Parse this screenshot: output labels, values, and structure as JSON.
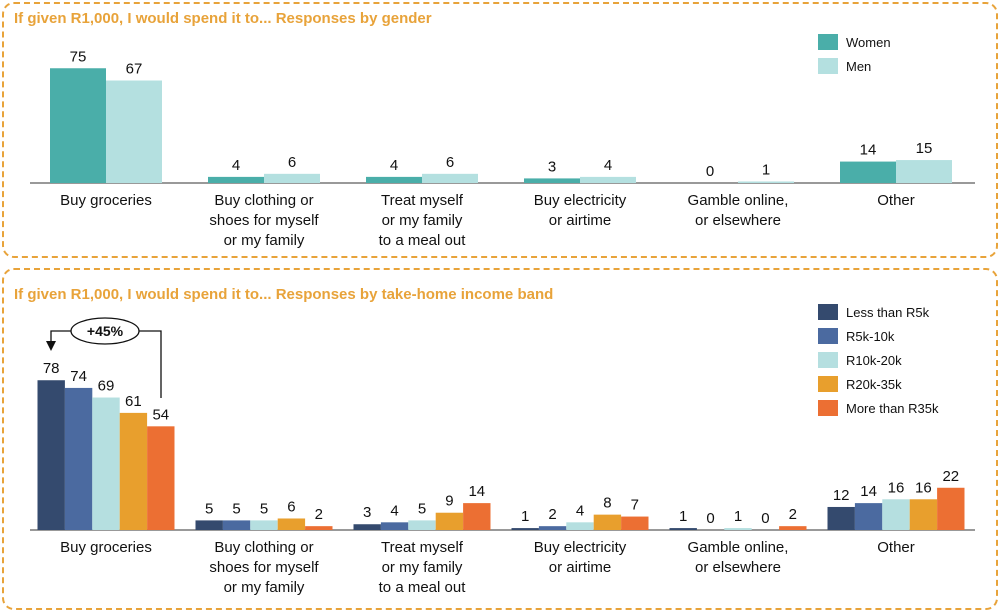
{
  "chart_data": [
    {
      "type": "bar",
      "title": "If given R1,000, I would spend it to... Responses by gender",
      "categories": [
        "Buy groceries",
        "Buy clothing or shoes for myself or my family",
        "Treat myself or my family to a meal out",
        "Buy electricity or airtime",
        "Gamble online, or elsewhere",
        "Other"
      ],
      "category_lines": [
        [
          "Buy groceries"
        ],
        [
          "Buy clothing or",
          "shoes for myself",
          "or my family"
        ],
        [
          "Treat myself",
          "or my family",
          "to a meal out"
        ],
        [
          "Buy electricity",
          "or airtime"
        ],
        [
          "Gamble online,",
          "or elsewhere"
        ],
        [
          "Other"
        ]
      ],
      "series": [
        {
          "name": "Women",
          "color": "#4aaea9",
          "values": [
            75,
            4,
            4,
            3,
            0,
            14
          ]
        },
        {
          "name": "Men",
          "color": "#b4e0e0",
          "values": [
            67,
            6,
            6,
            4,
            1,
            15
          ]
        }
      ],
      "ylim": [
        0,
        80
      ],
      "legend": "top-right",
      "grid": false
    },
    {
      "type": "bar",
      "title": "If given R1,000, I would spend it to... Responses by take-home income band",
      "categories": [
        "Buy groceries",
        "Buy clothing or shoes for myself or my family",
        "Treat myself or my family to a meal out",
        "Buy electricity or airtime",
        "Gamble online, or elsewhere",
        "Other"
      ],
      "category_lines": [
        [
          "Buy groceries"
        ],
        [
          "Buy clothing or",
          "shoes for myself",
          "or my family"
        ],
        [
          "Treat myself",
          "or my family",
          "to a meal out"
        ],
        [
          "Buy electricity",
          "or airtime"
        ],
        [
          "Gamble online,",
          "or elsewhere"
        ],
        [
          "Other"
        ]
      ],
      "series": [
        {
          "name": "Less than R5k",
          "color": "#344a6e",
          "values": [
            78,
            5,
            3,
            1,
            1,
            12
          ]
        },
        {
          "name": "R5k-10k",
          "color": "#4b6aa0",
          "values": [
            74,
            5,
            4,
            2,
            0,
            14
          ]
        },
        {
          "name": "R10k-20k",
          "color": "#b5dfe0",
          "values": [
            69,
            5,
            5,
            4,
            1,
            16
          ]
        },
        {
          "name": "R20k-35k",
          "color": "#e89f2d",
          "values": [
            61,
            6,
            9,
            8,
            0,
            16
          ]
        },
        {
          "name": "More than R35k",
          "color": "#ec6f33",
          "values": [
            54,
            2,
            14,
            7,
            2,
            22
          ]
        }
      ],
      "ylim": [
        0,
        80
      ],
      "legend": "top-right",
      "grid": false,
      "annotation": "+45%"
    }
  ]
}
